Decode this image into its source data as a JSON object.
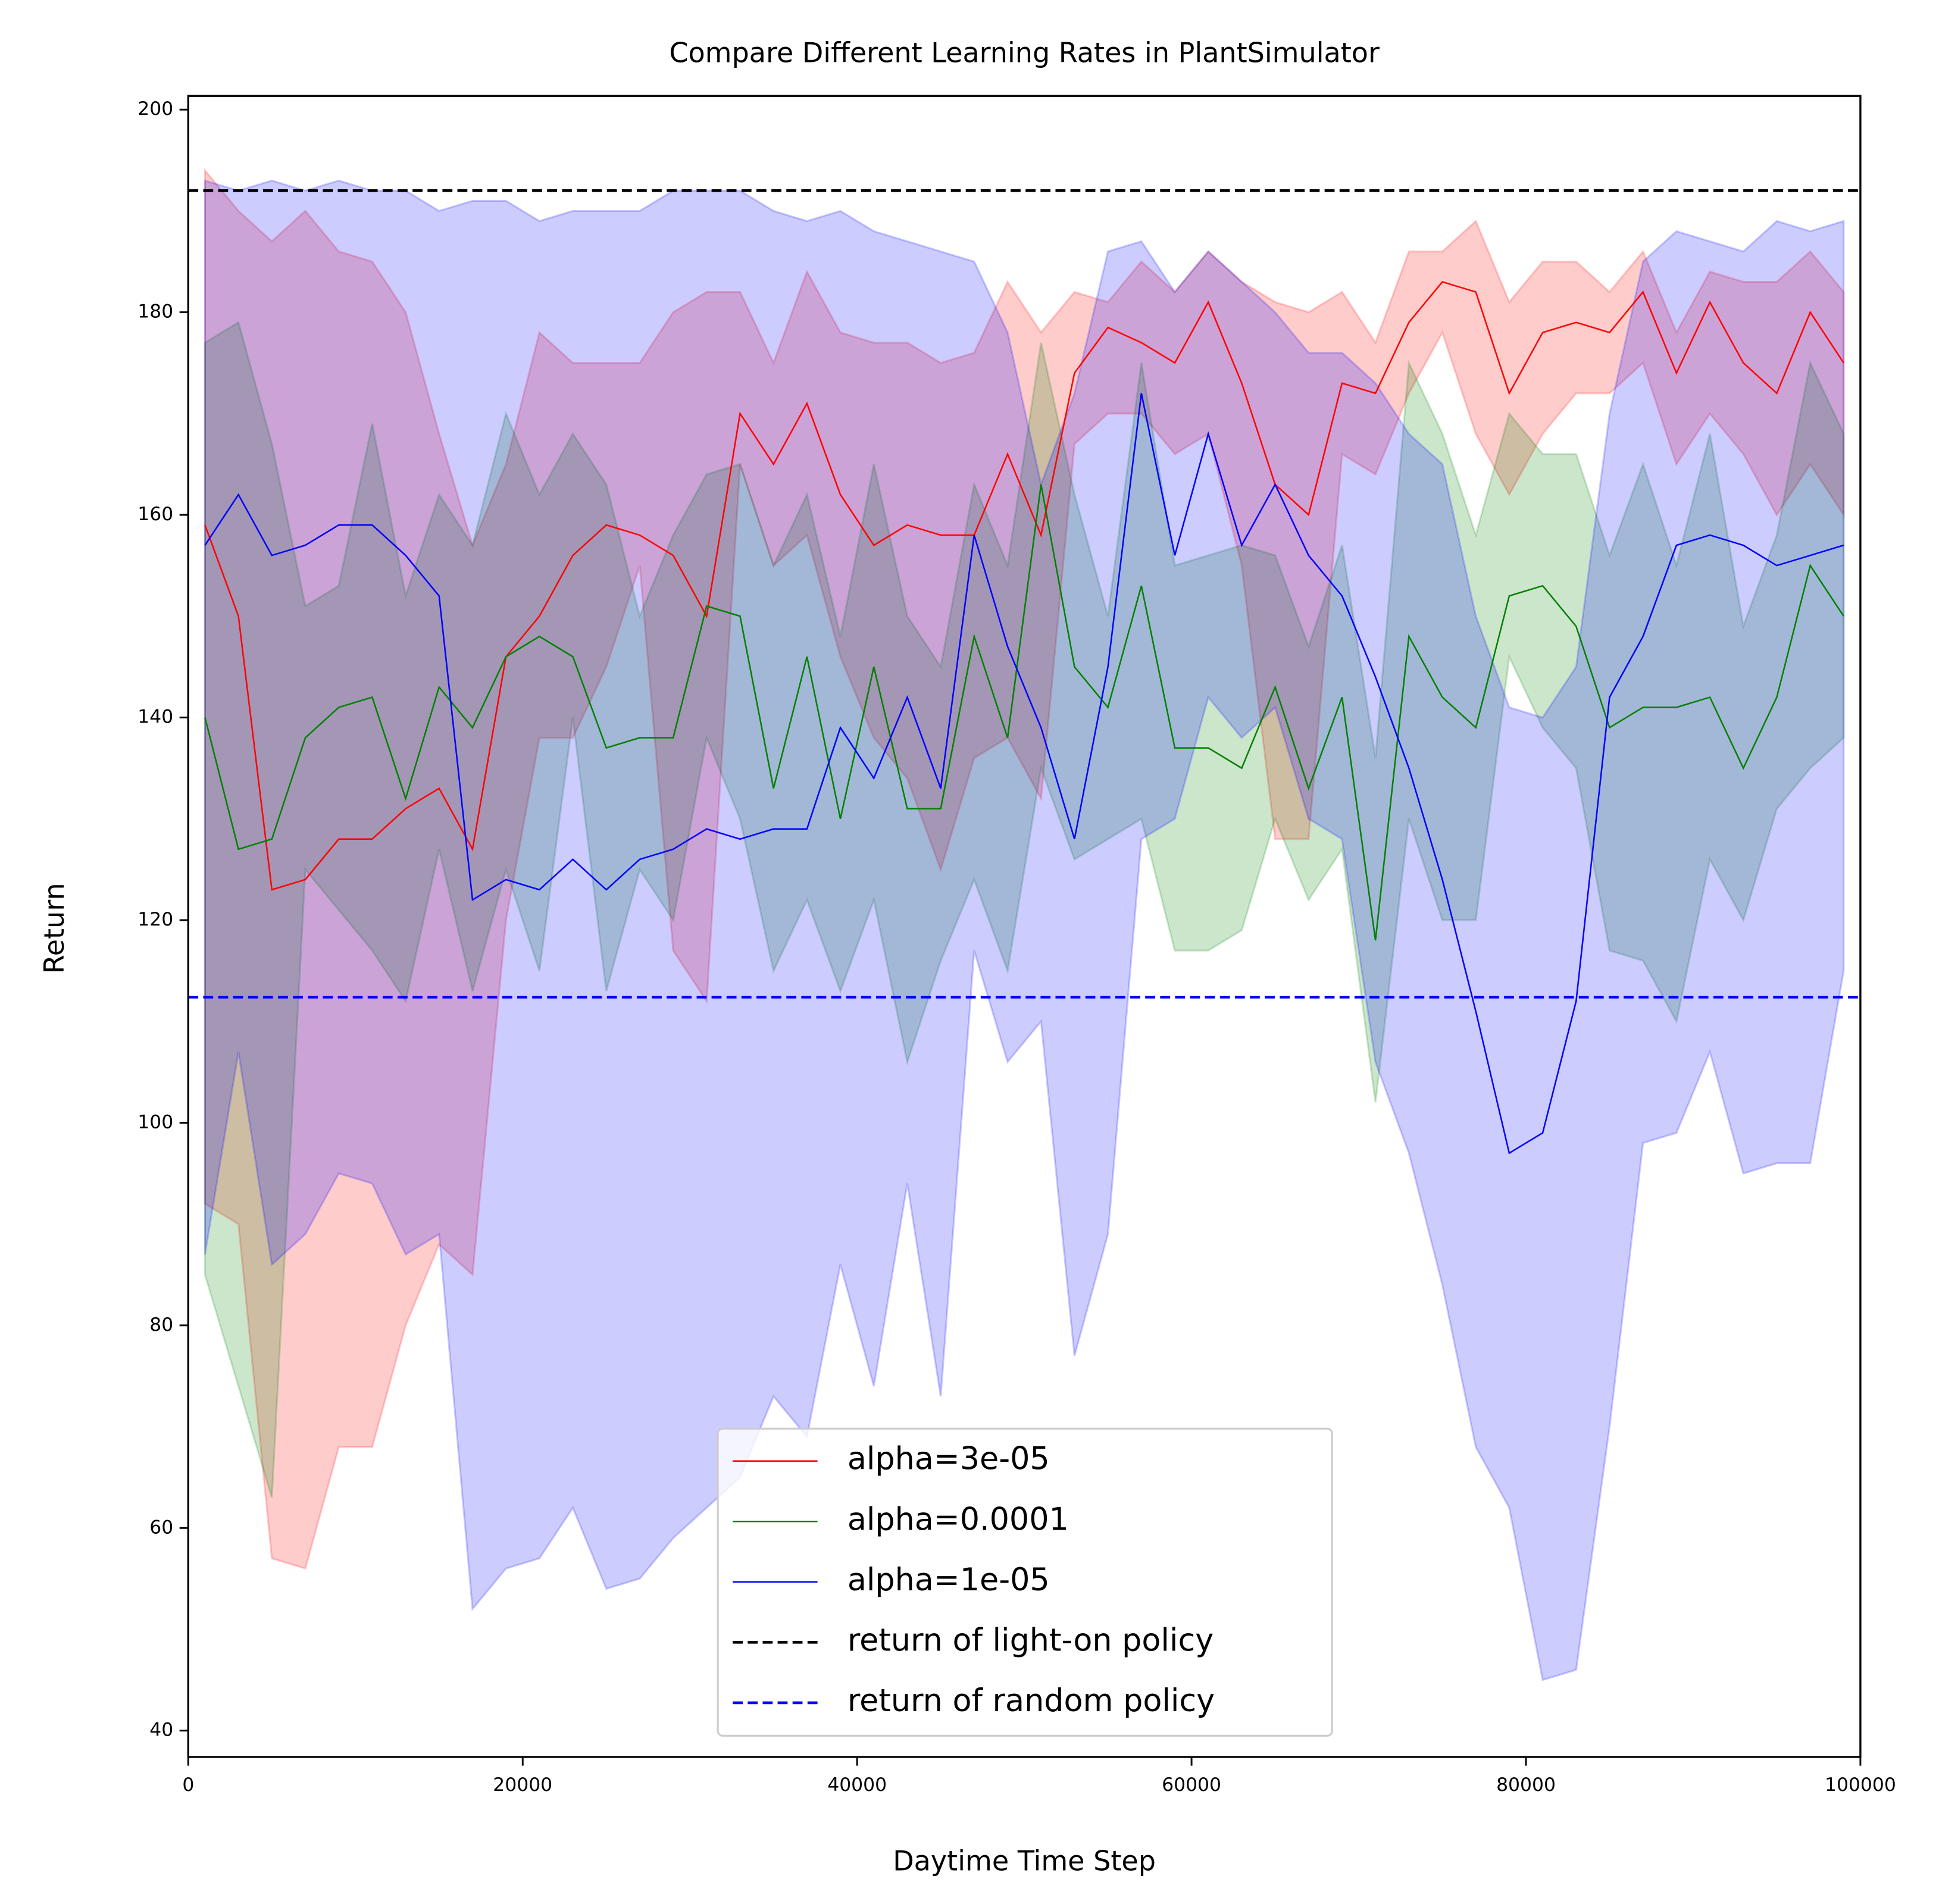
{
  "chart_data": {
    "type": "line",
    "title": "Compare Different Learning Rates in PlantSimulator",
    "xlabel": "Daytime Time Step",
    "ylabel": "Return",
    "xlim": [
      0,
      100000
    ],
    "ylim": [
      37.4,
      201.35
    ],
    "xticks": [
      0,
      20000,
      40000,
      60000,
      80000,
      100000
    ],
    "yticks": [
      40,
      60,
      80,
      100,
      120,
      140,
      160,
      180,
      200
    ],
    "legend": "lower center",
    "x": [
      1000,
      3000,
      5000,
      7000,
      9000,
      11000,
      13000,
      15000,
      17000,
      19000,
      21000,
      23000,
      25000,
      27000,
      29000,
      31000,
      33000,
      35000,
      37000,
      39000,
      41000,
      43000,
      45000,
      47000,
      49000,
      51000,
      53000,
      55000,
      57000,
      59000,
      61000,
      63000,
      65000,
      67000,
      69000,
      71000,
      73000,
      75000,
      77000,
      79000,
      81000,
      83000,
      85000,
      87000,
      89000,
      91000,
      93000,
      95000,
      97000,
      99000
    ],
    "series": [
      {
        "name": "alpha=3e-05",
        "color": "#ff0000",
        "values": [
          159,
          150,
          123,
          124,
          128,
          128,
          131,
          133,
          127,
          146,
          150,
          156,
          159,
          158,
          156,
          150,
          170,
          165,
          171,
          162,
          157,
          159,
          158,
          158,
          166,
          158,
          174,
          178.5,
          177,
          175,
          181,
          173,
          163,
          160,
          173,
          172,
          179,
          183,
          182,
          172,
          178,
          179,
          178,
          182,
          174,
          181,
          175,
          172,
          180,
          175
        ],
        "lower": [
          92,
          90,
          57,
          56,
          68,
          68,
          80,
          88,
          85,
          120,
          138,
          138,
          145,
          155,
          117,
          112,
          165,
          155,
          158,
          146,
          138,
          134,
          125,
          136,
          138,
          132,
          167,
          170,
          170,
          166,
          168,
          155,
          128,
          128,
          166,
          164,
          172,
          178,
          168,
          162,
          168,
          172,
          172,
          175,
          165,
          170,
          166,
          160,
          165,
          160
        ],
        "upper": [
          194,
          190,
          187,
          190,
          186,
          185,
          180,
          168,
          157,
          165,
          178,
          175,
          175,
          175,
          180,
          182,
          182,
          175,
          184,
          178,
          177,
          177,
          175,
          176,
          183,
          178,
          182,
          181,
          185,
          182,
          186,
          183,
          181,
          180,
          182,
          177,
          186,
          186,
          189,
          181,
          185,
          185,
          182,
          186,
          178,
          184,
          183,
          183,
          186,
          182
        ]
      },
      {
        "name": "alpha=0.0001",
        "color": "#008000",
        "values": [
          140,
          127,
          128,
          138,
          141,
          142,
          132,
          143,
          139,
          146,
          148,
          146,
          137,
          138,
          138,
          151,
          150,
          133,
          146,
          130,
          145,
          131,
          131,
          148,
          138,
          163,
          145,
          141,
          153,
          137,
          137,
          135,
          143,
          133,
          142,
          118,
          148,
          142,
          139,
          152,
          153,
          149,
          139,
          141,
          141,
          142,
          135,
          142,
          155,
          150
        ],
        "lower": [
          85,
          74,
          63,
          125,
          121,
          117,
          112,
          127,
          113,
          125,
          115,
          140,
          113,
          125,
          120,
          138,
          130,
          115,
          122,
          113,
          122,
          106,
          116,
          124,
          115,
          135,
          126,
          128,
          130,
          117,
          117,
          119,
          130,
          122,
          127,
          102,
          130,
          120,
          120,
          146,
          139,
          135,
          117,
          116,
          110,
          126,
          120,
          131,
          135,
          138
        ],
        "upper": [
          177,
          179,
          167,
          151,
          153,
          169,
          152,
          162,
          157,
          170,
          162,
          168,
          163,
          150,
          158,
          164,
          165,
          155,
          162,
          148,
          165,
          150,
          145,
          163,
          155,
          177,
          162,
          150,
          175,
          155,
          156,
          157,
          156,
          147,
          157,
          136,
          175,
          168,
          158,
          170,
          166,
          166,
          156,
          165,
          155,
          168,
          149,
          158,
          175,
          168
        ]
      },
      {
        "name": "alpha=1e-05",
        "color": "#0000ff",
        "values": [
          157,
          162,
          156,
          157,
          159,
          159,
          156,
          152,
          122,
          124,
          123,
          126,
          123,
          126,
          127,
          129,
          128,
          129,
          129,
          139,
          134,
          142,
          133,
          158,
          147,
          139,
          128,
          145,
          172,
          156,
          168,
          157,
          163,
          156,
          152,
          144,
          135,
          124,
          111,
          97,
          99,
          112,
          142,
          148,
          157,
          158,
          157,
          155,
          156,
          157
        ],
        "lower": [
          87,
          107,
          86,
          89,
          95,
          94,
          87,
          89,
          52,
          56,
          57,
          62,
          54,
          55,
          59,
          62,
          65,
          73,
          69,
          86,
          74,
          94,
          73,
          117,
          106,
          110,
          77,
          89,
          128,
          130,
          142,
          138,
          141,
          130,
          128,
          106,
          97,
          84,
          68,
          62,
          45,
          46,
          70,
          98,
          99,
          107,
          95,
          96,
          96,
          115
        ],
        "upper": [
          193,
          192,
          193,
          192,
          193,
          192,
          192,
          190,
          191,
          191,
          189,
          190,
          190,
          190,
          192,
          192,
          192,
          190,
          189,
          190,
          188,
          187,
          186,
          185,
          178,
          163,
          172,
          186,
          187,
          182,
          186,
          183,
          180,
          176,
          176,
          173,
          168,
          165,
          150,
          141,
          140,
          145,
          170,
          185,
          188,
          187,
          186,
          189,
          188,
          189
        ]
      }
    ],
    "hlines": [
      {
        "name": "return of light-on policy",
        "color": "#000000",
        "value": 192.0
      },
      {
        "name": "return of random policy",
        "color": "#0000ff",
        "value": 112.4
      }
    ]
  }
}
